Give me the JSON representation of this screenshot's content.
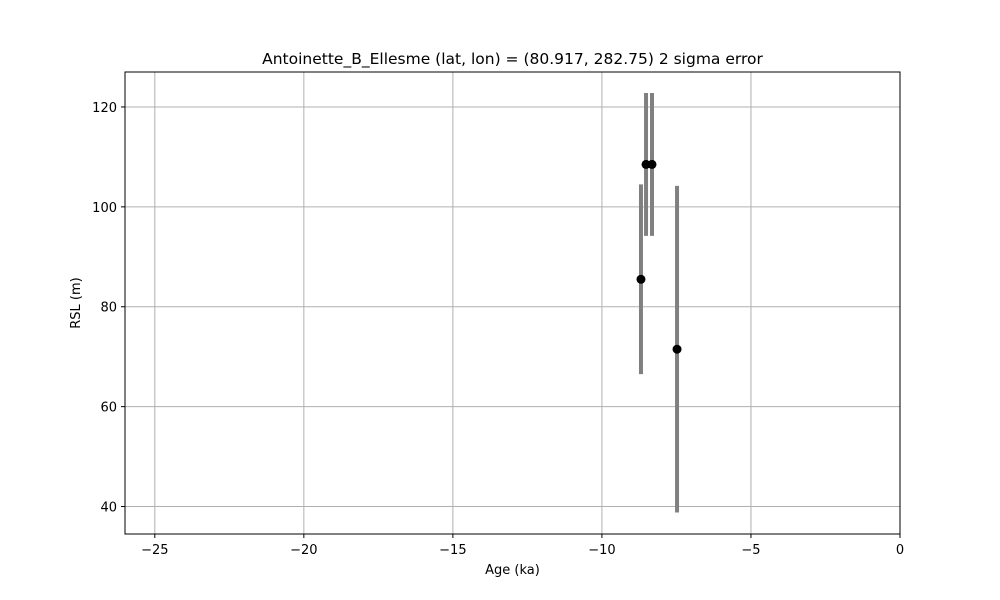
{
  "chart_data": {
    "type": "scatter",
    "title": "Antoinette_B_Ellesme (lat, lon) = (80.917, 282.75)  2 sigma error",
    "xlabel": "Age (ka)",
    "ylabel": "RSL (m)",
    "xlim": [
      -26,
      0
    ],
    "ylim": [
      34.5,
      127
    ],
    "xticks": [
      -25,
      -20,
      -15,
      -10,
      -5,
      0
    ],
    "xtick_labels": [
      "−25",
      "−20",
      "−15",
      "−10",
      "−5",
      "0"
    ],
    "yticks": [
      40,
      60,
      80,
      100,
      120
    ],
    "ytick_labels": [
      "40",
      "60",
      "80",
      "100",
      "120"
    ],
    "grid": true,
    "colors": {
      "point": "#000000",
      "errorbar": "#808080",
      "grid": "#b0b0b0"
    },
    "points": [
      {
        "x": -8.69,
        "y": 85.5,
        "y_low": 66.5,
        "y_high": 104.5
      },
      {
        "x": -8.52,
        "y": 108.5,
        "y_low": 94.2,
        "y_high": 122.8
      },
      {
        "x": -8.32,
        "y": 108.5,
        "y_low": 94.2,
        "y_high": 122.8
      },
      {
        "x": -7.48,
        "y": 71.5,
        "y_low": 38.8,
        "y_high": 104.2
      }
    ]
  }
}
